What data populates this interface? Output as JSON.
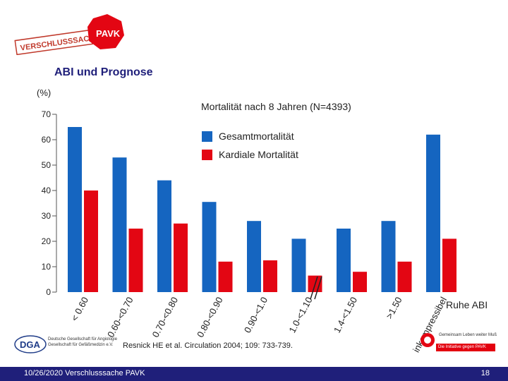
{
  "header": {
    "logo_text": "VERSCHLUSSSACHE",
    "logo_badge": "PAVK"
  },
  "slide": {
    "title": "ABI und Prognose",
    "unit": "(%)",
    "subtitle": "Mortalität nach 8 Jahren (N=4393)",
    "side_label": "Ruhe ABI",
    "citation": "Resnick HE et al. Circulation 2004; 109: 733-739."
  },
  "footer": {
    "date_text": "10/26/2020  Verschlusssache PAVK",
    "page_number": "18",
    "dga_logo": "DGA",
    "dga_text": "Deutsche Gesellschaft für Angiologie Gesellschaft für Gefäßmedizin e.V.",
    "right_logo_line1": "Gemeinsam Leben weiter Muß",
    "right_logo_line2": "Die Initiative gegen PAVK"
  },
  "colors": {
    "series_total": "#1565c0",
    "series_cardiac": "#e30613",
    "footer_bg": "#1f1f7a",
    "title": "#1f1f7a"
  },
  "chart_data": {
    "type": "bar",
    "categories": [
      "< 0.60",
      "0.60-<0.70",
      "0.70-<0.80",
      "0.80-<0.90",
      "0.90-<1.0",
      "1.0-<1.10",
      "1.4-<1.50",
      ">1.50",
      "inkompressibel"
    ],
    "series": [
      {
        "name": "Gesamtmortalität",
        "values": [
          65,
          53,
          44,
          35.5,
          28,
          21,
          25,
          28,
          62
        ]
      },
      {
        "name": "Kardiale Mortalität",
        "values": [
          40,
          25,
          27,
          12,
          12.5,
          6.5,
          8,
          12,
          21
        ]
      }
    ],
    "ylim": [
      0,
      70
    ],
    "yticks": [
      0,
      10,
      20,
      30,
      40,
      50,
      60,
      70
    ],
    "axis_break_between": [
      "1.0-<1.10",
      "1.4-<1.50"
    ],
    "legend_position": "top-center"
  }
}
